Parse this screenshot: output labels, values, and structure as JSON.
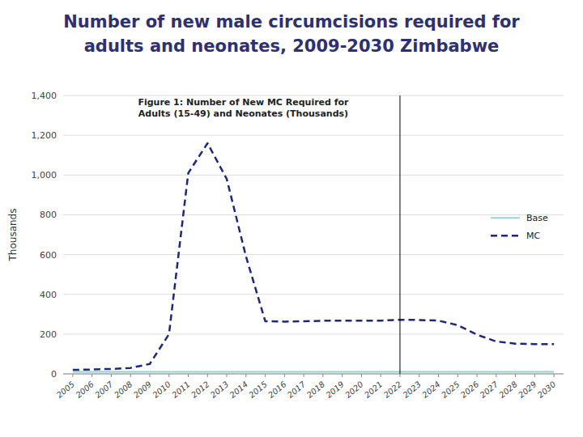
{
  "chart_data": {
    "type": "line",
    "title": [
      "Number of new male circumcisions required for",
      "  adults and neonates, 2009-2030 Zimbabwe"
    ],
    "subtitle": [
      "Figure 1: Number of New MC Required for",
      "Adults (15-49) and Neonates (Thousands)"
    ],
    "ylabel": "Thousands",
    "x": [
      2005,
      2006,
      2007,
      2008,
      2009,
      2010,
      2011,
      2012,
      2013,
      2014,
      2015,
      2016,
      2017,
      2018,
      2019,
      2020,
      2021,
      2022,
      2023,
      2024,
      2025,
      2026,
      2027,
      2028,
      2029,
      2030
    ],
    "series": [
      {
        "name": "Base",
        "color": "#96D0D0",
        "line_style": "solid",
        "values": [
          10,
          10,
          10,
          10,
          10,
          10,
          10,
          10,
          10,
          10,
          10,
          10,
          10,
          10,
          10,
          10,
          10,
          10,
          10,
          10,
          10,
          10,
          10,
          10,
          10,
          10
        ]
      },
      {
        "name": "MC",
        "color": "#1F2878",
        "line_style": "dashed",
        "values": [
          20,
          22,
          25,
          30,
          50,
          200,
          1010,
          1160,
          980,
          590,
          265,
          263,
          265,
          267,
          268,
          268,
          268,
          272,
          271,
          268,
          245,
          197,
          163,
          152,
          150,
          150
        ]
      }
    ],
    "vline_x": 2022,
    "xlim": [
      2004.5,
      2030.5
    ],
    "xticks": [
      2005,
      2006,
      2007,
      2008,
      2009,
      2010,
      2011,
      2012,
      2013,
      2014,
      2015,
      2016,
      2017,
      2018,
      2019,
      2020,
      2021,
      2022,
      2023,
      2024,
      2025,
      2026,
      2027,
      2028,
      2029,
      2030
    ],
    "ylim": [
      0,
      1400
    ],
    "yticks": [
      0,
      200,
      400,
      600,
      800,
      {
        "value": 1000,
        "label": "1,000"
      },
      {
        "value": 1200,
        "label": "1,200"
      },
      {
        "value": 1400,
        "label": "1,400"
      }
    ],
    "title_color": "#2E3070",
    "grid": true,
    "legend": "right"
  }
}
